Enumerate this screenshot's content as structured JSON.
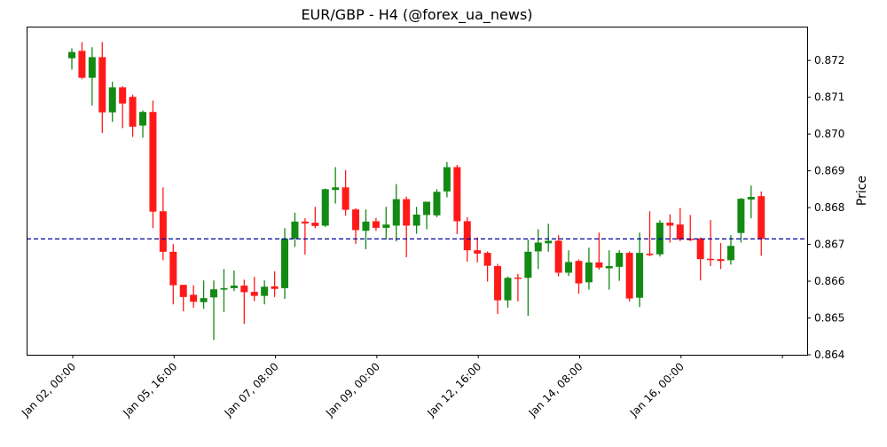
{
  "chart_data": {
    "type": "candlestick",
    "title": "EUR/GBP - H4 (@forex_ua_news)",
    "xlabel": "",
    "ylabel": "Price",
    "y_axis_side": "right",
    "ylim": [
      0.864,
      0.87292
    ],
    "yticks": [
      "0.864",
      "0.865",
      "0.866",
      "0.867",
      "0.868",
      "0.869",
      "0.870",
      "0.871",
      "0.872"
    ],
    "xtick_index": [
      0,
      10,
      20,
      30,
      40,
      50,
      60,
      70
    ],
    "xtick_labels": [
      "Jan 02, 00:00",
      "Jan 05, 16:00",
      "Jan 07, 08:00",
      "Jan 09, 00:00",
      "Jan 12, 16:00",
      "Jan 14, 08:00",
      "Jan 16, 00:00",
      ""
    ],
    "grid": false,
    "hline": {
      "value": 0.86715,
      "style": "dashed",
      "color": "#0000a0"
    },
    "colors": {
      "up": "#138a13",
      "down": "#ff1a1a"
    },
    "open": [
      0.87206,
      0.87226,
      0.87153,
      0.87209,
      0.87059,
      0.87127,
      0.87101,
      0.87023,
      0.8706,
      0.8679,
      0.8668,
      0.8659,
      0.86563,
      0.86543,
      0.86556,
      0.86577,
      0.86581,
      0.86588,
      0.86571,
      0.8656,
      0.86586,
      0.86581,
      0.86716,
      0.86762,
      0.86759,
      0.86751,
      0.86848,
      0.86855,
      0.86795,
      0.86737,
      0.86763,
      0.86745,
      0.86751,
      0.86823,
      0.86751,
      0.8678,
      0.86779,
      0.86844,
      0.8691,
      0.86763,
      0.86684,
      0.86677,
      0.86641,
      0.86548,
      0.8661,
      0.86609,
      0.86681,
      0.86703,
      0.8671,
      0.86623,
      0.86655,
      0.86597,
      0.86651,
      0.86635,
      0.86639,
      0.86677,
      0.86555,
      0.86675,
      0.86673,
      0.86759,
      0.86754,
      0.86715,
      0.86716,
      0.86661,
      0.8666,
      0.86657,
      0.86731,
      0.86822,
      0.86831
    ],
    "high": [
      0.87233,
      0.8725,
      0.87236,
      0.8725,
      0.87142,
      0.8713,
      0.87107,
      0.87064,
      0.87091,
      0.86855,
      0.86701,
      0.8659,
      0.86589,
      0.86602,
      0.86602,
      0.86633,
      0.86629,
      0.86604,
      0.86612,
      0.86602,
      0.86627,
      0.86744,
      0.86786,
      0.86771,
      0.86802,
      0.86852,
      0.8691,
      0.86902,
      0.86798,
      0.86795,
      0.86772,
      0.86802,
      0.86864,
      0.8683,
      0.86802,
      0.86816,
      0.8685,
      0.86924,
      0.86916,
      0.86774,
      0.86719,
      0.86681,
      0.86647,
      0.86613,
      0.8662,
      0.86713,
      0.86741,
      0.86756,
      0.86725,
      0.86684,
      0.86659,
      0.86691,
      0.86732,
      0.86684,
      0.86684,
      0.86681,
      0.86732,
      0.8679,
      0.86766,
      0.86782,
      0.86799,
      0.8678,
      0.86719,
      0.86766,
      0.86704,
      0.86725,
      0.86826,
      0.8686,
      0.86844
    ],
    "low": [
      0.87175,
      0.87149,
      0.87077,
      0.87003,
      0.87033,
      0.87016,
      0.86992,
      0.8699,
      0.86744,
      0.86657,
      0.86537,
      0.86518,
      0.86528,
      0.86525,
      0.8644,
      0.86516,
      0.86573,
      0.86484,
      0.86546,
      0.86537,
      0.86557,
      0.86552,
      0.86693,
      0.86672,
      0.86744,
      0.86747,
      0.86811,
      0.86778,
      0.86701,
      0.86687,
      0.86737,
      0.86713,
      0.86708,
      0.86665,
      0.86729,
      0.86741,
      0.86774,
      0.86828,
      0.86728,
      0.86653,
      0.86651,
      0.86599,
      0.86511,
      0.86528,
      0.86545,
      0.86506,
      0.86633,
      0.8668,
      0.86613,
      0.86614,
      0.86566,
      0.86577,
      0.86631,
      0.86577,
      0.86601,
      0.86545,
      0.8653,
      0.86668,
      0.86667,
      0.86705,
      0.86709,
      0.86709,
      0.86602,
      0.86641,
      0.86633,
      0.86645,
      0.86705,
      0.86771,
      0.86669
    ],
    "close": [
      0.87223,
      0.87153,
      0.87209,
      0.87059,
      0.87127,
      0.87083,
      0.8702,
      0.8706,
      0.86789,
      0.8668,
      0.86589,
      0.86557,
      0.86544,
      0.86554,
      0.86578,
      0.86581,
      0.86588,
      0.8657,
      0.8656,
      0.86585,
      0.86579,
      0.86716,
      0.86762,
      0.86757,
      0.8675,
      0.8685,
      0.86855,
      0.86794,
      0.86739,
      0.86762,
      0.86745,
      0.86754,
      0.86823,
      0.86751,
      0.86781,
      0.86816,
      0.86843,
      0.8691,
      0.86763,
      0.86684,
      0.86675,
      0.86642,
      0.86548,
      0.86609,
      0.86607,
      0.8668,
      0.86705,
      0.8671,
      0.86623,
      0.86652,
      0.86594,
      0.86651,
      0.86637,
      0.86641,
      0.86677,
      0.86553,
      0.86677,
      0.86671,
      0.86759,
      0.86751,
      0.86713,
      0.86712,
      0.8666,
      0.86659,
      0.86655,
      0.86696,
      0.86824,
      0.86829,
      0.86715
    ]
  }
}
